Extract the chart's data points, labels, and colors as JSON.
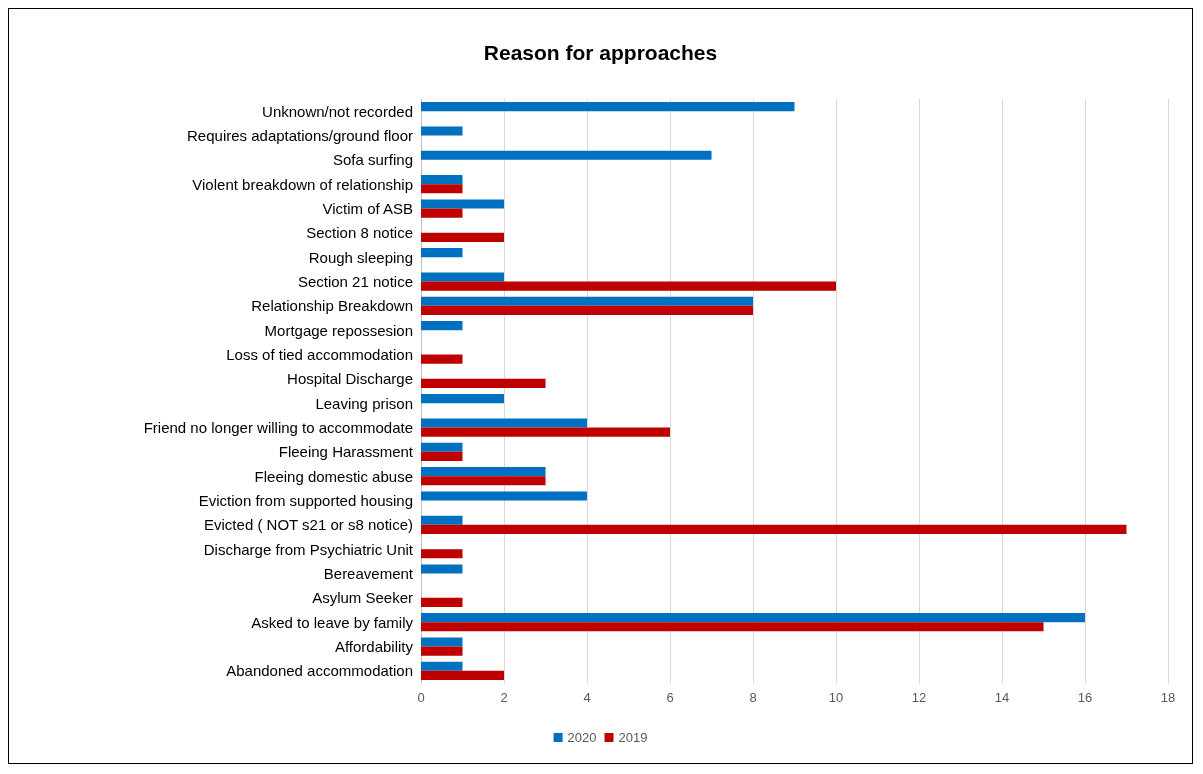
{
  "chart_data": {
    "type": "bar",
    "orientation": "horizontal",
    "title": "Reason for approaches",
    "categories": [
      "Unknown/not recorded",
      "Requires adaptations/ground floor",
      "Sofa surfing",
      "Violent breakdown of relationship",
      "Victim of ASB",
      "Section 8 notice",
      "Rough sleeping",
      "Section 21 notice",
      "Relationship Breakdown",
      "Mortgage repossesion",
      "Loss of tied accommodation",
      "Hospital Discharge",
      "Leaving prison",
      "Friend no longer willing to accommodate",
      "Fleeing Harassment",
      "Fleeing domestic abuse",
      "Eviction from supported housing",
      "Evicted ( NOT s21 or s8 notice)",
      "Discharge from Psychiatric Unit",
      "Bereavement",
      "Asylum Seeker",
      "Asked to leave by family",
      "Affordability",
      "Abandoned accommodation"
    ],
    "series": [
      {
        "name": "2020",
        "color": "#0070c0",
        "values": [
          9,
          1,
          7,
          1,
          2,
          null,
          1,
          2,
          8,
          1,
          null,
          null,
          2,
          4,
          1,
          3,
          4,
          1,
          null,
          1,
          null,
          16,
          1,
          1
        ]
      },
      {
        "name": "2019",
        "color": "#c00000",
        "values": [
          null,
          null,
          null,
          1,
          1,
          2,
          null,
          10,
          8,
          null,
          1,
          3,
          null,
          6,
          1,
          3,
          null,
          17,
          1,
          null,
          1,
          15,
          1,
          2
        ]
      }
    ],
    "xlim": [
      0,
      18
    ],
    "xticks": [
      0,
      2,
      4,
      6,
      8,
      10,
      12,
      14,
      16,
      18
    ],
    "grid": "x",
    "legend": "bottom"
  }
}
